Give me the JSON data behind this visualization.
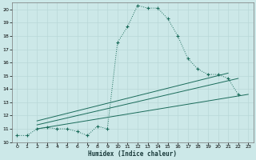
{
  "xlabel": "Humidex (Indice chaleur)",
  "bg_color": "#cce8e8",
  "grid_color": "#b8d8d8",
  "line_color": "#1a6b5a",
  "xlim": [
    -0.5,
    23.5
  ],
  "ylim": [
    10,
    20.5
  ],
  "xticks": [
    0,
    1,
    2,
    3,
    4,
    5,
    6,
    7,
    8,
    9,
    10,
    11,
    12,
    13,
    14,
    15,
    16,
    17,
    18,
    19,
    20,
    21,
    22,
    23
  ],
  "yticks": [
    10,
    11,
    12,
    13,
    14,
    15,
    16,
    17,
    18,
    19,
    20
  ],
  "curve1_x": [
    0,
    1,
    2,
    3,
    4,
    5,
    6,
    7,
    8,
    9,
    10,
    11,
    12,
    13,
    14,
    15,
    16,
    17,
    18,
    19,
    20,
    21,
    22
  ],
  "curve1_y": [
    10.5,
    10.5,
    11.0,
    11.1,
    11.0,
    11.0,
    10.8,
    10.5,
    11.2,
    11.0,
    17.5,
    18.7,
    20.3,
    20.1,
    20.1,
    19.3,
    18.0,
    16.3,
    15.5,
    15.1,
    15.1,
    14.8,
    13.6
  ],
  "line1_x": [
    2,
    23
  ],
  "line1_y": [
    11.0,
    13.6
  ],
  "line2_x": [
    2,
    22
  ],
  "line2_y": [
    11.3,
    14.8
  ],
  "line3_x": [
    2,
    21
  ],
  "line3_y": [
    11.6,
    15.2
  ]
}
